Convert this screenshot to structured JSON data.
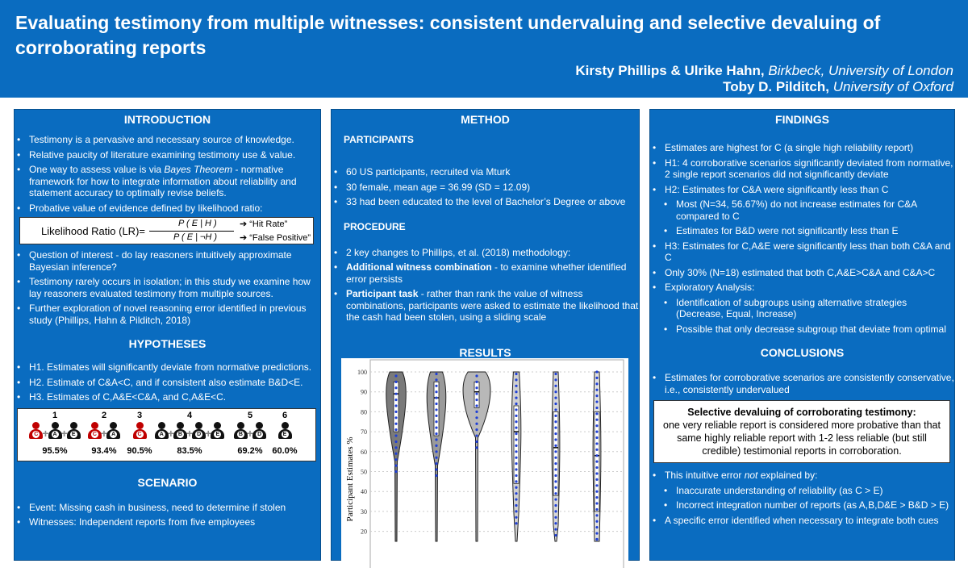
{
  "header": {
    "title": "Evaluating testimony from multiple witnesses: consistent undervaluing and selective devaluing of corroborating reports",
    "authors1": "Kirsty Phillips & Ulrike Hahn,",
    "aff1": "Birkbeck, University of London",
    "authors2": "Toby D. Pilditch,",
    "aff2": "University of Oxford"
  },
  "colors": {
    "brand": "#0a6cc0",
    "reliable": "#c00000",
    "witness": "#111111",
    "points": "#1f3fd6"
  },
  "intro": {
    "heading": "INTRODUCTION",
    "items": [
      "Testimony is a pervasive and necessary source of knowledge.",
      "Relative paucity of literature examining testimony use & value.",
      "One way to assess value is via Bayes Theorem - normative framework for how to integrate information about reliability and statement accuracy to optimally revise beliefs.",
      "Probative value of evidence defined by likelihood ratio:"
    ],
    "lr": {
      "label": "Likelihood Ratio (LR)=",
      "num": "P ( E | H )",
      "den": "P ( E | ¬H )",
      "hit": "➔ “Hit Rate”",
      "fp": "➔ “False Positive”"
    },
    "items2": [
      "Question of interest - do lay reasoners intuitively approximate Bayesian inference?",
      "Testimony rarely occurs in isolation; in this study we examine how lay reasoners evaluated testimony from multiple sources.",
      "Further exploration of novel reasoning error identified in previous study (Phillips, Hahn & Pilditch, 2018)"
    ]
  },
  "hyp": {
    "heading": "HYPOTHESES",
    "items": [
      "H1. Estimates will significantly deviate from normative predictions.",
      "H2. Estimate of C&A<C, and if consistent also estimate B&D<E.",
      "H3. Estimates of C,A&E<C&A, and C,A&E<C."
    ],
    "scenarios": [
      {
        "num": "1",
        "witnesses": [
          "C",
          "A",
          "E"
        ],
        "value": "95.5%"
      },
      {
        "num": "2",
        "witnesses": [
          "C",
          "A"
        ],
        "value": "93.4%"
      },
      {
        "num": "3",
        "witnesses": [
          "C"
        ],
        "value": "90.5%"
      },
      {
        "num": "4",
        "witnesses": [
          "A",
          "B",
          "D",
          "E"
        ],
        "value": "83.5%"
      },
      {
        "num": "5",
        "witnesses": [
          "B",
          "D"
        ],
        "value": "69.2%"
      },
      {
        "num": "6",
        "witnesses": [
          "E"
        ],
        "value": "60.0%"
      }
    ]
  },
  "scenario": {
    "heading": "SCENARIO",
    "items": [
      "Event: Missing cash in business, need to determine if stolen",
      "Witnesses: Independent reports from five employees"
    ]
  },
  "method": {
    "heading": "METHOD",
    "participants": "PARTICIPANTS",
    "p_items": [
      "60  US participants, recruited via Mturk",
      "30 female, mean age = 36.99 (SD = 12.09)",
      "33 had been educated to the level of Bachelor’s Degree or above"
    ],
    "procedure": "PROCEDURE",
    "proc_intro": "2 key changes to Phillips, et al. (2018) methodology:",
    "awc_b": "Additional witness combination",
    "awc": " - to examine whether identified error persists",
    "pt_b": "Participant task",
    "pt": " - rather than rank the value of witness combinations, participants were asked to estimate the likelihood that the cash had been stolen, using a sliding scale"
  },
  "results": {
    "heading": "RESULTS"
  },
  "chart_data": {
    "type": "violin",
    "ylabel": "Participant Estimates %",
    "yticks": [
      20,
      30,
      40,
      50,
      60,
      70,
      80,
      90,
      100
    ],
    "ylim": [
      15,
      103
    ],
    "grid": true,
    "series": [
      {
        "shade": "#7a7a7a",
        "q1": 70,
        "median": 89,
        "q3": 95
      },
      {
        "shade": "#9a9a9a",
        "q1": 68,
        "median": 87,
        "q3": 95
      },
      {
        "shade": "#b8b8b8",
        "q1": 82,
        "median": 90,
        "q3": 95
      },
      {
        "shade": "#d0d0d0",
        "q1": 44,
        "median": 70,
        "q3": 83
      },
      {
        "shade": "#d8d8d8",
        "q1": 38,
        "median": 62,
        "q3": 80
      },
      {
        "shade": "#e0e0e0",
        "q1": 30,
        "median": 58,
        "q3": 80
      }
    ]
  },
  "findings": {
    "heading": "FINDINGS",
    "items": [
      {
        "t": "Estimates are highest for C (a single high reliability report)",
        "l": 1
      },
      {
        "t": "H1: 4 corroborative scenarios significantly deviated from normative, 2 single report scenarios did not significantly deviate",
        "l": 1
      },
      {
        "t": "H2: Estimates for C&A were significantly less than C",
        "l": 1
      },
      {
        "t": "Most (N=34, 56.67%) do not increase estimates for C&A compared to C",
        "l": 2
      },
      {
        "t": "Estimates for B&D were not significantly less than E",
        "l": 2
      },
      {
        "t": "H3: Estimates for C,A&E were significantly less than both C&A and C",
        "l": 1
      },
      {
        "t": "Only 30% (N=18) estimated that both C,A&E>C&A and C&A>C",
        "l": 1
      },
      {
        "t": "Exploratory Analysis:",
        "l": 1
      },
      {
        "t": "Identification of subgroups using alternative strategies (Decrease, Equal, Increase)",
        "l": 2
      },
      {
        "t": "Possible that only decrease subgroup that deviate from optimal",
        "l": 2
      }
    ]
  },
  "conclusions": {
    "heading": "CONCLUSIONS",
    "item1": "Estimates for corroborative scenarios are consistently conservative, i.e., consistently undervalued",
    "box_title": "Selective devaluing of corroborating testimony:",
    "box_text": "one very reliable report is considered more probative than that same highly reliable report with 1-2 less reliable (but still credible) testimonial reports in corroboration.",
    "not_pre": "This intuitive error ",
    "not_i": "not",
    "not_post": " explained by:",
    "sub": [
      "Inaccurate understanding of reliability (as C > E)",
      "Incorrect integration number of reports (as A,B,D&E > B&D > E)"
    ],
    "last": "A specific error identified when necessary to integrate both cues"
  }
}
